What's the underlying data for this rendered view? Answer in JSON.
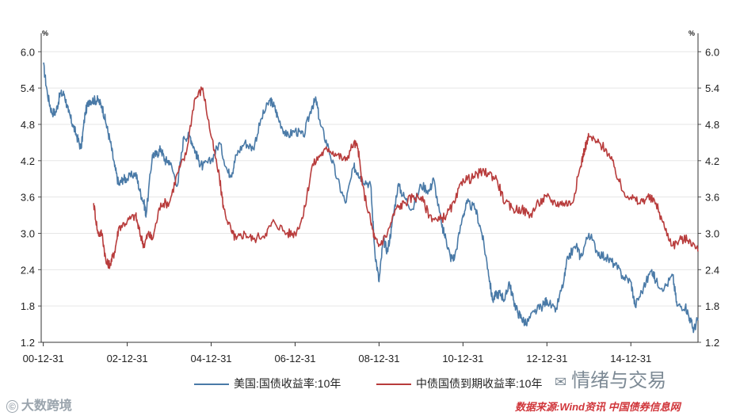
{
  "chart_data": {
    "type": "line",
    "xlabel": "",
    "ylabel": "",
    "y_unit_left": "%",
    "y_unit_right": "%",
    "ylim": [
      1.2,
      6.2
    ],
    "y_ticks": [
      1.2,
      1.8,
      2.4,
      3.0,
      3.6,
      4.2,
      4.8,
      5.4,
      6.0
    ],
    "x_ticks": [
      "00-12-31",
      "02-12-31",
      "04-12-31",
      "06-12-31",
      "08-12-31",
      "10-12-31",
      "12-12-31",
      "14-12-31"
    ],
    "x_range": [
      2000.95,
      2016.6
    ],
    "grid": true,
    "legend_position": "bottom",
    "series": [
      {
        "name": "美国:国债收益率:10年",
        "color": "#4a7aa7",
        "points": [
          [
            2001.0,
            5.8
          ],
          [
            2001.1,
            5.3
          ],
          [
            2001.2,
            5.0
          ],
          [
            2001.3,
            5.0
          ],
          [
            2001.4,
            5.3
          ],
          [
            2001.5,
            5.3
          ],
          [
            2001.6,
            5.0
          ],
          [
            2001.7,
            4.8
          ],
          [
            2001.8,
            4.6
          ],
          [
            2001.9,
            4.4
          ],
          [
            2002.0,
            5.0
          ],
          [
            2002.1,
            5.2
          ],
          [
            2002.2,
            5.2
          ],
          [
            2002.3,
            5.2
          ],
          [
            2002.4,
            5.1
          ],
          [
            2002.5,
            4.8
          ],
          [
            2002.6,
            4.5
          ],
          [
            2002.7,
            4.1
          ],
          [
            2002.8,
            3.8
          ],
          [
            2002.9,
            3.9
          ],
          [
            2003.0,
            3.9
          ],
          [
            2003.2,
            4.0
          ],
          [
            2003.3,
            3.7
          ],
          [
            2003.4,
            3.5
          ],
          [
            2003.45,
            3.3
          ],
          [
            2003.6,
            4.3
          ],
          [
            2003.7,
            4.3
          ],
          [
            2003.8,
            4.4
          ],
          [
            2003.9,
            4.2
          ],
          [
            2004.0,
            4.2
          ],
          [
            2004.2,
            3.8
          ],
          [
            2004.35,
            4.6
          ],
          [
            2004.5,
            4.6
          ],
          [
            2004.6,
            4.4
          ],
          [
            2004.7,
            4.2
          ],
          [
            2004.8,
            4.1
          ],
          [
            2005.0,
            4.2
          ],
          [
            2005.2,
            4.5
          ],
          [
            2005.4,
            4.0
          ],
          [
            2005.5,
            4.0
          ],
          [
            2005.6,
            4.3
          ],
          [
            2005.8,
            4.5
          ],
          [
            2006.0,
            4.4
          ],
          [
            2006.2,
            4.9
          ],
          [
            2006.4,
            5.2
          ],
          [
            2006.5,
            5.1
          ],
          [
            2006.6,
            4.9
          ],
          [
            2006.8,
            4.6
          ],
          [
            2007.0,
            4.7
          ],
          [
            2007.2,
            4.6
          ],
          [
            2007.4,
            5.1
          ],
          [
            2007.5,
            5.2
          ],
          [
            2007.6,
            4.8
          ],
          [
            2007.8,
            4.4
          ],
          [
            2008.0,
            3.9
          ],
          [
            2008.2,
            3.5
          ],
          [
            2008.4,
            4.1
          ],
          [
            2008.5,
            4.0
          ],
          [
            2008.6,
            3.9
          ],
          [
            2008.8,
            3.8
          ],
          [
            2008.9,
            2.7
          ],
          [
            2009.0,
            2.2
          ],
          [
            2009.1,
            2.9
          ],
          [
            2009.2,
            2.7
          ],
          [
            2009.3,
            3.1
          ],
          [
            2009.45,
            3.8
          ],
          [
            2009.6,
            3.6
          ],
          [
            2009.8,
            3.4
          ],
          [
            2010.0,
            3.8
          ],
          [
            2010.2,
            3.7
          ],
          [
            2010.3,
            3.9
          ],
          [
            2010.5,
            3.1
          ],
          [
            2010.6,
            2.9
          ],
          [
            2010.7,
            2.6
          ],
          [
            2010.8,
            2.6
          ],
          [
            2011.0,
            3.3
          ],
          [
            2011.1,
            3.5
          ],
          [
            2011.3,
            3.4
          ],
          [
            2011.45,
            3.0
          ],
          [
            2011.6,
            2.4
          ],
          [
            2011.7,
            1.9
          ],
          [
            2011.8,
            2.0
          ],
          [
            2011.9,
            2.0
          ],
          [
            2012.0,
            1.9
          ],
          [
            2012.1,
            2.2
          ],
          [
            2012.2,
            1.9
          ],
          [
            2012.3,
            1.7
          ],
          [
            2012.4,
            1.6
          ],
          [
            2012.5,
            1.5
          ],
          [
            2012.7,
            1.7
          ],
          [
            2012.9,
            1.8
          ],
          [
            2013.0,
            1.9
          ],
          [
            2013.2,
            1.7
          ],
          [
            2013.4,
            2.2
          ],
          [
            2013.5,
            2.6
          ],
          [
            2013.7,
            2.8
          ],
          [
            2013.8,
            2.6
          ],
          [
            2014.0,
            3.0
          ],
          [
            2014.2,
            2.7
          ],
          [
            2014.4,
            2.6
          ],
          [
            2014.6,
            2.5
          ],
          [
            2014.8,
            2.3
          ],
          [
            2015.0,
            2.2
          ],
          [
            2015.1,
            1.8
          ],
          [
            2015.3,
            2.1
          ],
          [
            2015.5,
            2.4
          ],
          [
            2015.6,
            2.2
          ],
          [
            2015.8,
            2.1
          ],
          [
            2016.0,
            2.3
          ],
          [
            2016.1,
            1.8
          ],
          [
            2016.3,
            1.8
          ],
          [
            2016.4,
            1.6
          ],
          [
            2016.5,
            1.4
          ],
          [
            2016.6,
            1.6
          ]
        ]
      },
      {
        "name": "中债国债到期收益率:10年",
        "color": "#b83c3c",
        "points": [
          [
            2002.2,
            3.5
          ],
          [
            2002.3,
            3.0
          ],
          [
            2002.4,
            3.0
          ],
          [
            2002.5,
            2.5
          ],
          [
            2002.6,
            2.5
          ],
          [
            2002.7,
            2.7
          ],
          [
            2002.8,
            3.1
          ],
          [
            2003.0,
            3.2
          ],
          [
            2003.2,
            3.3
          ],
          [
            2003.3,
            3.0
          ],
          [
            2003.4,
            2.8
          ],
          [
            2003.5,
            3.0
          ],
          [
            2003.6,
            2.9
          ],
          [
            2003.8,
            3.5
          ],
          [
            2004.0,
            3.5
          ],
          [
            2004.2,
            4.0
          ],
          [
            2004.4,
            4.3
          ],
          [
            2004.6,
            5.2
          ],
          [
            2004.8,
            5.4
          ],
          [
            2005.0,
            4.6
          ],
          [
            2005.2,
            3.9
          ],
          [
            2005.3,
            3.4
          ],
          [
            2005.5,
            3.0
          ],
          [
            2005.6,
            2.9
          ],
          [
            2005.8,
            3.0
          ],
          [
            2006.0,
            2.9
          ],
          [
            2006.3,
            3.0
          ],
          [
            2006.5,
            3.2
          ],
          [
            2006.8,
            3.0
          ],
          [
            2007.0,
            3.0
          ],
          [
            2007.2,
            3.3
          ],
          [
            2007.4,
            4.1
          ],
          [
            2007.6,
            4.3
          ],
          [
            2007.8,
            4.4
          ],
          [
            2008.0,
            4.3
          ],
          [
            2008.2,
            4.2
          ],
          [
            2008.4,
            4.5
          ],
          [
            2008.5,
            4.4
          ],
          [
            2008.6,
            3.8
          ],
          [
            2008.8,
            3.2
          ],
          [
            2008.9,
            2.9
          ],
          [
            2009.0,
            2.8
          ],
          [
            2009.2,
            3.0
          ],
          [
            2009.4,
            3.4
          ],
          [
            2009.6,
            3.5
          ],
          [
            2009.8,
            3.6
          ],
          [
            2010.0,
            3.6
          ],
          [
            2010.2,
            3.3
          ],
          [
            2010.4,
            3.2
          ],
          [
            2010.6,
            3.3
          ],
          [
            2010.8,
            3.5
          ],
          [
            2011.0,
            3.9
          ],
          [
            2011.2,
            3.9
          ],
          [
            2011.4,
            4.0
          ],
          [
            2011.6,
            4.0
          ],
          [
            2011.8,
            3.9
          ],
          [
            2012.0,
            3.5
          ],
          [
            2012.2,
            3.4
          ],
          [
            2012.4,
            3.4
          ],
          [
            2012.6,
            3.3
          ],
          [
            2012.8,
            3.5
          ],
          [
            2013.0,
            3.6
          ],
          [
            2013.2,
            3.5
          ],
          [
            2013.4,
            3.5
          ],
          [
            2013.6,
            3.5
          ],
          [
            2013.8,
            4.1
          ],
          [
            2013.9,
            4.4
          ],
          [
            2014.0,
            4.6
          ],
          [
            2014.2,
            4.5
          ],
          [
            2014.4,
            4.4
          ],
          [
            2014.6,
            4.1
          ],
          [
            2014.8,
            3.7
          ],
          [
            2015.0,
            3.6
          ],
          [
            2015.2,
            3.5
          ],
          [
            2015.4,
            3.6
          ],
          [
            2015.6,
            3.5
          ],
          [
            2015.8,
            3.1
          ],
          [
            2016.0,
            2.8
          ],
          [
            2016.2,
            2.9
          ],
          [
            2016.4,
            2.9
          ],
          [
            2016.6,
            2.7
          ]
        ]
      }
    ]
  },
  "watermarks": {
    "brand_left": "大数跨境",
    "brand_right": "情绪与交易",
    "source": "数据来源:Wind资讯 中国债券信息网"
  }
}
